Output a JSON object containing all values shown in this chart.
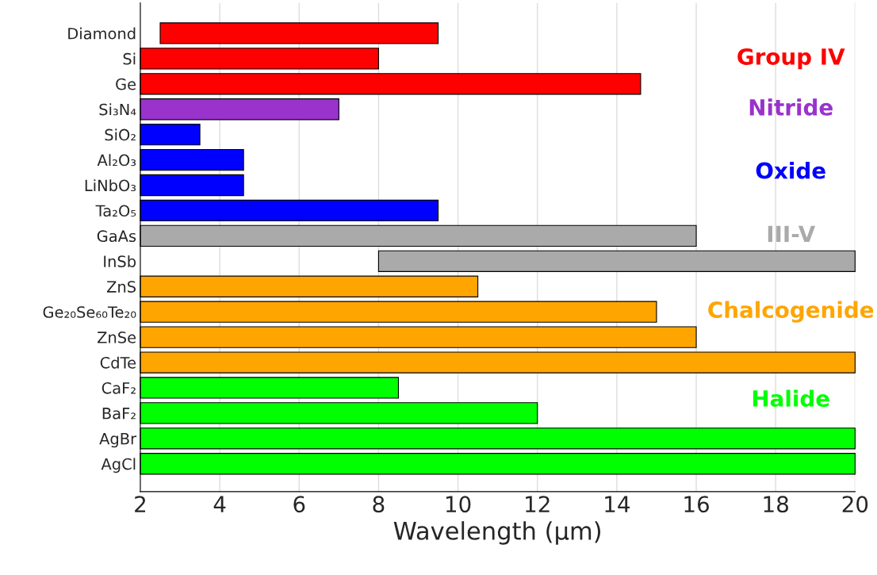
{
  "chart_data": {
    "type": "bar",
    "orientation": "horizontal",
    "xlabel": "Wavelength (µm)",
    "categories": [
      "Diamond",
      "Si",
      "Ge",
      "Si₃N₄",
      "SiO₂",
      "Al₂O₃",
      "LiNbO₃",
      "Ta₂O₅",
      "GaAs",
      "InSb",
      "ZnS",
      "Ge₂₀Se₆₀Te₂₀",
      "ZnSe",
      "CdTe",
      "CaF₂",
      "BaF₂",
      "AgBr",
      "AgCl"
    ],
    "series": [
      {
        "name": "Group IV",
        "color": "#ff0000",
        "base": [
          2.5,
          2,
          2,
          null,
          null,
          null,
          null,
          null,
          null,
          null,
          null,
          null,
          null,
          null,
          null,
          null,
          null,
          null
        ],
        "values": [
          7,
          6,
          12.6,
          null,
          null,
          null,
          null,
          null,
          null,
          null,
          null,
          null,
          null,
          null,
          null,
          null,
          null,
          null
        ]
      },
      {
        "name": "Nitride",
        "color": "#9933cc",
        "base": [
          null,
          null,
          null,
          2,
          null,
          null,
          null,
          null,
          null,
          null,
          null,
          null,
          null,
          null,
          null,
          null,
          null,
          null
        ],
        "values": [
          null,
          null,
          null,
          5,
          null,
          null,
          null,
          null,
          null,
          null,
          null,
          null,
          null,
          null,
          null,
          null,
          null,
          null
        ]
      },
      {
        "name": "Oxide",
        "color": "#0000ff",
        "base": [
          null,
          null,
          null,
          null,
          2,
          2,
          2,
          2,
          null,
          null,
          null,
          null,
          null,
          null,
          null,
          null,
          null,
          null
        ],
        "values": [
          null,
          null,
          null,
          null,
          1.5,
          2.6,
          2.6,
          7.5,
          null,
          null,
          null,
          null,
          null,
          null,
          null,
          null,
          null,
          null
        ]
      },
      {
        "name": "III-V",
        "color": "#aaaaaa",
        "base": [
          null,
          null,
          null,
          null,
          null,
          null,
          null,
          null,
          2,
          8,
          null,
          null,
          null,
          null,
          null,
          null,
          null,
          null
        ],
        "values": [
          null,
          null,
          null,
          null,
          null,
          null,
          null,
          null,
          14,
          12,
          null,
          null,
          null,
          null,
          null,
          null,
          null,
          null
        ]
      },
      {
        "name": "Chalcogenide",
        "color": "#ffa500",
        "base": [
          null,
          null,
          null,
          null,
          null,
          null,
          null,
          null,
          null,
          null,
          2,
          2,
          2,
          2,
          null,
          null,
          null,
          null
        ],
        "values": [
          null,
          null,
          null,
          null,
          null,
          null,
          null,
          null,
          null,
          null,
          8.5,
          13,
          14,
          18,
          null,
          null,
          null,
          null
        ]
      },
      {
        "name": "Halide",
        "color": "#00ff00",
        "base": [
          null,
          null,
          null,
          null,
          null,
          null,
          null,
          null,
          null,
          null,
          null,
          null,
          null,
          null,
          2,
          2,
          2,
          2
        ],
        "values": [
          null,
          null,
          null,
          null,
          null,
          null,
          null,
          null,
          null,
          null,
          null,
          null,
          null,
          null,
          6.5,
          10,
          18,
          18
        ]
      }
    ],
    "xlim": [
      2,
      20
    ],
    "xticks": [
      2,
      4,
      6,
      8,
      10,
      12,
      14,
      16,
      18,
      20
    ],
    "grid": "x"
  }
}
